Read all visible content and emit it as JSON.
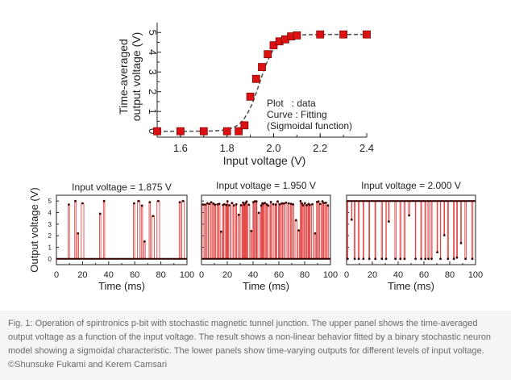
{
  "colors": {
    "marker": "#dd1111",
    "marker_edge": "#7a0a0a",
    "fit_line": "#555555",
    "trace": "#e24848",
    "trace_dot": "#3a0a0a",
    "axis": "#222222",
    "caption_bg": "#f5f5f5",
    "caption_text": "#6a6a6a"
  },
  "chart_data": [
    {
      "type": "scatter",
      "id": "top",
      "title": "",
      "xlabel": "Input voltage (V)",
      "ylabel_line1": "Time-averaged",
      "ylabel_line2": "output voltage (V)",
      "xlim": [
        1.5,
        2.4
      ],
      "ylim": [
        -0.3,
        5.5
      ],
      "xticks": [
        "1.6",
        "1.8",
        "2.0",
        "2.2",
        "2.4"
      ],
      "yticks": [
        "0",
        "1",
        "2",
        "3",
        "4",
        "5"
      ],
      "series": [
        {
          "name": "data",
          "x": [
            1.5,
            1.6,
            1.7,
            1.8,
            1.85,
            1.875,
            1.9,
            1.925,
            1.95,
            1.975,
            2.0,
            2.025,
            2.05,
            2.075,
            2.1,
            2.2,
            2.3,
            2.4
          ],
          "y": [
            0.0,
            0.0,
            0.0,
            0.0,
            0.0,
            0.3,
            1.75,
            2.65,
            3.25,
            3.9,
            4.35,
            4.55,
            4.65,
            4.8,
            4.85,
            4.9,
            4.9,
            4.9
          ]
        },
        {
          "name": "fit",
          "function": "sigmoid",
          "amplitude": 4.9,
          "center": 1.94,
          "width": 0.035
        }
      ],
      "annotation": {
        "line1": "Plot   : data",
        "line2": "Curve : Fitting",
        "line3": "(Sigmoidal function)"
      }
    },
    {
      "type": "line",
      "id": "p1",
      "title": "Input voltage = 1.875 V",
      "xlabel": "Time (ms)",
      "ylabel": "Output voltage (V)",
      "xlim": [
        0,
        100
      ],
      "ylim": [
        -0.5,
        5.5
      ],
      "xticks": [
        "0",
        "20",
        "40",
        "60",
        "80",
        "100"
      ],
      "yticks": [
        "0",
        "1",
        "2",
        "3",
        "4",
        "5"
      ],
      "pulses": [
        [
          9,
          10,
          4.7
        ],
        [
          14,
          15,
          5.0
        ],
        [
          16,
          17,
          2.2
        ],
        [
          19,
          21,
          4.8
        ],
        [
          33,
          34,
          3.9
        ],
        [
          36,
          37,
          5.0
        ],
        [
          59,
          60,
          4.8
        ],
        [
          62,
          64,
          5.0
        ],
        [
          65,
          66,
          4.6
        ],
        [
          67,
          68,
          1.5
        ],
        [
          71,
          72,
          4.9
        ],
        [
          73,
          75,
          3.7
        ],
        [
          77,
          79,
          5.0
        ],
        [
          94,
          95,
          4.9
        ],
        [
          96,
          98,
          5.0
        ]
      ]
    },
    {
      "type": "line",
      "id": "p2",
      "title": "Input voltage = 1.950 V",
      "xlabel": "Time (ms)",
      "ylabel": "",
      "xlim": [
        0,
        100
      ],
      "ylim": [
        -0.5,
        5.5
      ],
      "xticks": [
        "0",
        "20",
        "40",
        "60",
        "80",
        "100"
      ],
      "yticks": [],
      "density": "high",
      "seed": 5
    },
    {
      "type": "line",
      "id": "p3",
      "title": "Input voltage = 2.000 V",
      "xlabel": "Time (ms)",
      "ylabel": "",
      "xlim": [
        0,
        100
      ],
      "ylim": [
        -0.5,
        5.5
      ],
      "xticks": [
        "0",
        "20",
        "40",
        "60",
        "80",
        "100"
      ],
      "yticks": [],
      "density": "high-mostly",
      "seed": 11
    }
  ],
  "caption": "Fig. 1: Operation of spintronics p-bit with stochastic magnetic tunnel junction. The upper panel shows the time-averaged output voltage as a function of the input voltage. The result shows a non-linear behavior fitted by a binary stochastic neuron model showing a sigmoidal characteristic. The lower panels show time-varying outputs for different levels of input voltage.   ©Shunsuke Fukami and Kerem Camsari"
}
